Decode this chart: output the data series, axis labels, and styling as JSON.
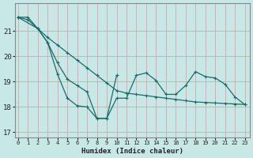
{
  "xlabel": "Humidex (Indice chaleur)",
  "bg_color": "#c8e8e8",
  "grid_color": "#e8a0a0",
  "line_color": "#1a6b6b",
  "ylim": [
    16.8,
    22.1
  ],
  "xlim": [
    -0.3,
    23.5
  ],
  "yticks": [
    17,
    18,
    19,
    20,
    21
  ],
  "xticks": [
    0,
    1,
    2,
    3,
    4,
    5,
    6,
    7,
    8,
    9,
    10,
    11,
    12,
    13,
    14,
    15,
    16,
    17,
    18,
    19,
    20,
    21,
    22,
    23
  ],
  "line1_x": [
    0,
    1,
    2,
    3,
    4,
    5,
    6,
    7,
    8,
    9,
    10,
    11,
    12,
    13,
    14,
    15,
    16,
    17,
    18,
    19,
    20,
    21,
    22,
    23
  ],
  "line1_y": [
    21.55,
    21.45,
    21.1,
    20.75,
    20.45,
    20.15,
    19.85,
    19.55,
    19.25,
    18.95,
    18.65,
    18.55,
    18.5,
    18.45,
    18.4,
    18.35,
    18.3,
    18.25,
    18.2,
    18.18,
    18.16,
    18.14,
    18.12,
    18.1
  ],
  "line2_x": [
    0,
    2,
    3,
    4,
    5,
    6,
    7,
    8,
    9,
    10,
    11,
    12,
    13,
    14,
    15,
    16,
    17,
    18,
    19,
    20,
    21,
    22,
    23
  ],
  "line2_y": [
    21.55,
    21.1,
    20.55,
    19.3,
    18.35,
    18.05,
    18.0,
    17.55,
    17.55,
    18.35,
    18.35,
    19.25,
    19.35,
    19.05,
    18.5,
    18.5,
    18.85,
    19.4,
    19.2,
    19.15,
    18.9,
    18.4,
    18.1
  ],
  "line3_x": [
    0,
    1,
    2,
    3,
    4,
    5,
    6,
    7,
    8,
    9,
    10
  ],
  "line3_y": [
    21.55,
    21.55,
    21.1,
    20.55,
    19.75,
    19.1,
    18.85,
    18.6,
    17.55,
    17.55,
    19.25
  ]
}
